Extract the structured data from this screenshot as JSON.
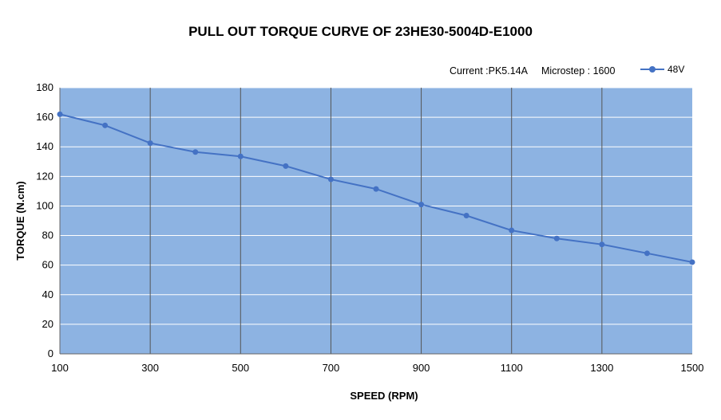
{
  "chart_data": {
    "type": "line",
    "title": "PULL OUT TORQUE CURVE OF 23HE30-5004D-E1000",
    "info": [
      "Current :PK5.14A",
      "Microstep : 1600"
    ],
    "xlabel": "SPEED (RPM)",
    "ylabel": "TORQUE (N.cm)",
    "xlim": [
      100,
      1500
    ],
    "ylim": [
      0,
      180
    ],
    "xticks": [
      100,
      300,
      500,
      700,
      900,
      1100,
      1300,
      1500
    ],
    "yticks": [
      0,
      20,
      40,
      60,
      80,
      100,
      120,
      140,
      160,
      180
    ],
    "grid": true,
    "legend_position": "top-right",
    "plot_background": "#8db3e2",
    "series": [
      {
        "name": "48V",
        "color": "#4472c4",
        "x": [
          100,
          200,
          300,
          400,
          500,
          600,
          700,
          800,
          900,
          1000,
          1100,
          1200,
          1300,
          1400,
          1500
        ],
        "y": [
          162,
          154.5,
          142.5,
          136.5,
          133.5,
          127,
          118,
          111.5,
          101,
          93.5,
          83.5,
          78,
          74,
          68,
          62
        ]
      }
    ]
  }
}
